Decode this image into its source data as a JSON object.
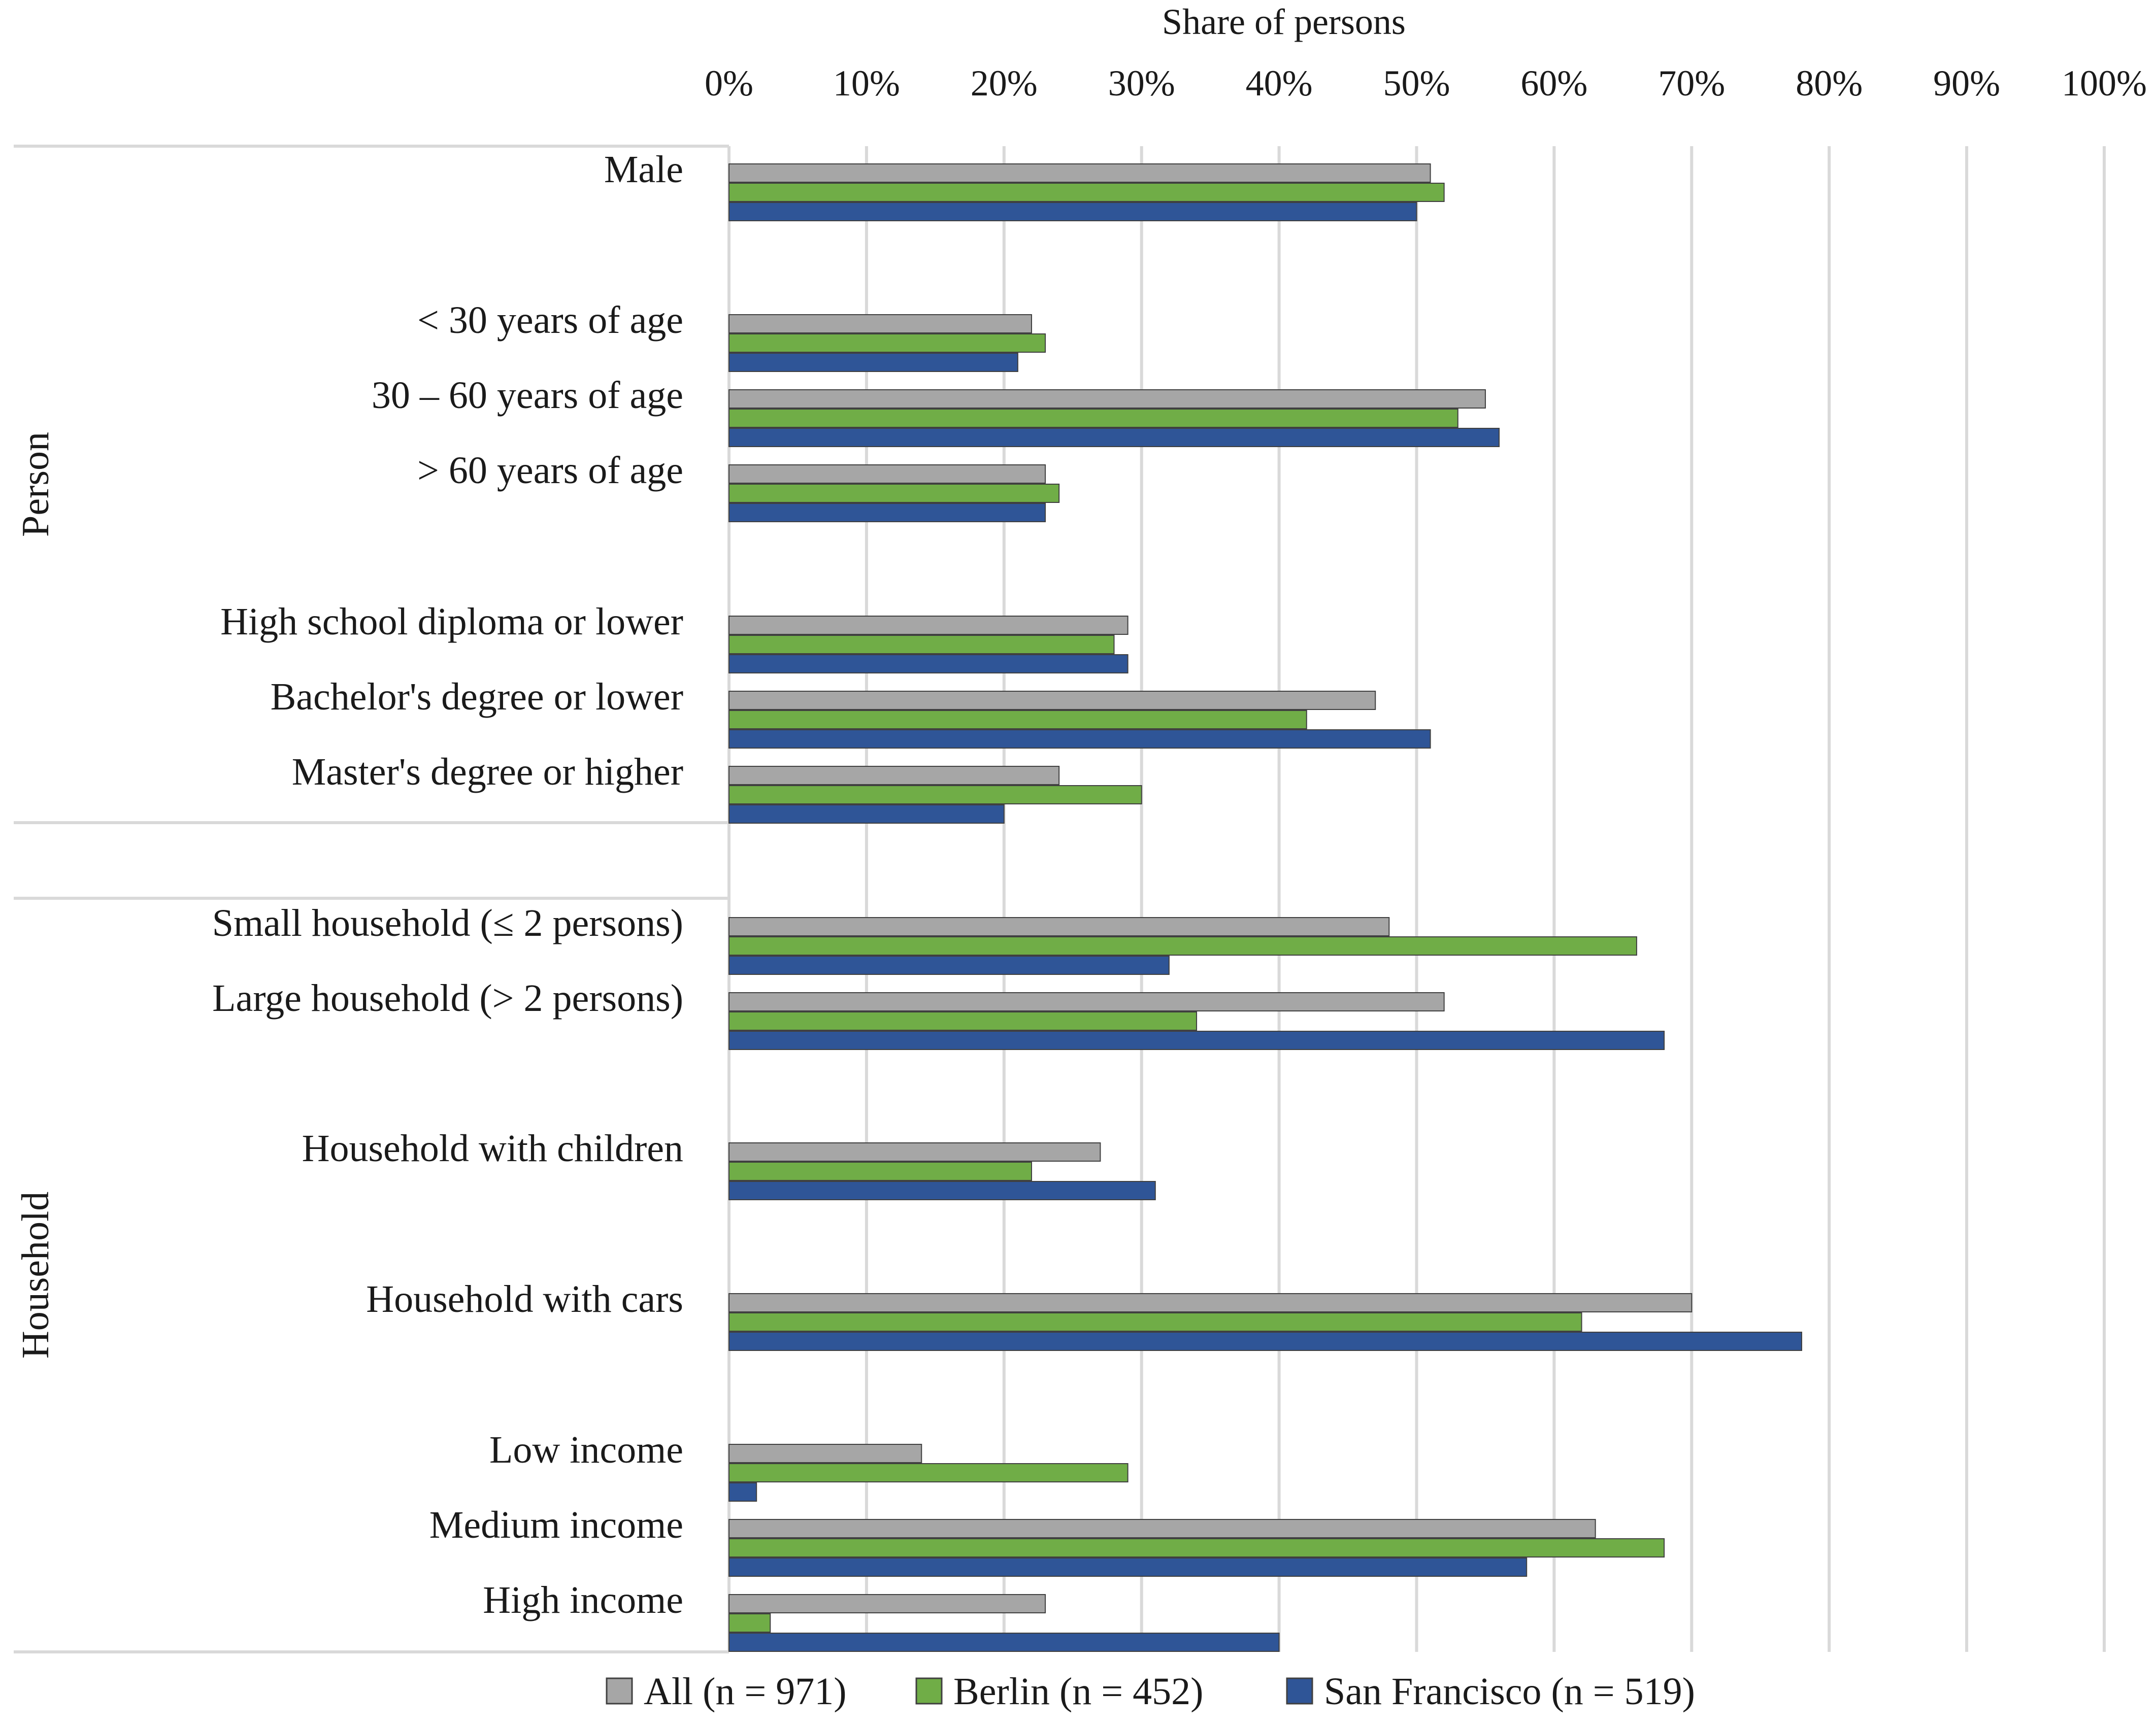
{
  "chart_data": {
    "type": "bar",
    "orientation": "horizontal",
    "title": "",
    "xlabel": "Share of persons",
    "ylabel": "",
    "xlim": [
      0,
      100
    ],
    "x_ticks": [
      "0%",
      "10%",
      "20%",
      "30%",
      "40%",
      "50%",
      "60%",
      "70%",
      "80%",
      "90%",
      "100%"
    ],
    "grid": "vertical",
    "legend_position": "bottom",
    "groups": [
      {
        "label": "Person",
        "categories": [
          "Male",
          "< 30 years of age",
          "30 – 60 years of age",
          "> 60 years of age",
          "High school diploma or lower",
          "Bachelor's degree or lower",
          "Master's degree or higher"
        ]
      },
      {
        "label": "Household",
        "categories": [
          "Small household (≤ 2 persons)",
          "Large household (> 2 persons)",
          "Household with children",
          "Household with cars",
          "Low income",
          "Medium income",
          "High income"
        ]
      }
    ],
    "categories": [
      "Male",
      "< 30 years of age",
      "30 – 60 years of age",
      "> 60 years of age",
      "High school diploma or lower",
      "Bachelor's degree or lower",
      "Master's degree or higher",
      "Small household (≤ 2 persons)",
      "Large household (> 2 persons)",
      "Household with children",
      "Household with cars",
      "Low income",
      "Medium income",
      "High income"
    ],
    "series": [
      {
        "name": "All (n = 971)",
        "color": "#a6a6a6",
        "values": [
          51,
          22,
          55,
          23,
          29,
          47,
          24,
          48,
          52,
          27,
          70,
          14,
          63,
          23
        ]
      },
      {
        "name": "Berlin (n = 452)",
        "color": "#70ad47",
        "values": [
          52,
          23,
          53,
          24,
          28,
          42,
          30,
          66,
          34,
          22,
          62,
          29,
          68,
          3
        ]
      },
      {
        "name": "San Francisco (n = 519)",
        "color": "#2f5597",
        "values": [
          50,
          21,
          56,
          23,
          29,
          51,
          20,
          32,
          68,
          31,
          78,
          2,
          58,
          40
        ]
      }
    ]
  }
}
